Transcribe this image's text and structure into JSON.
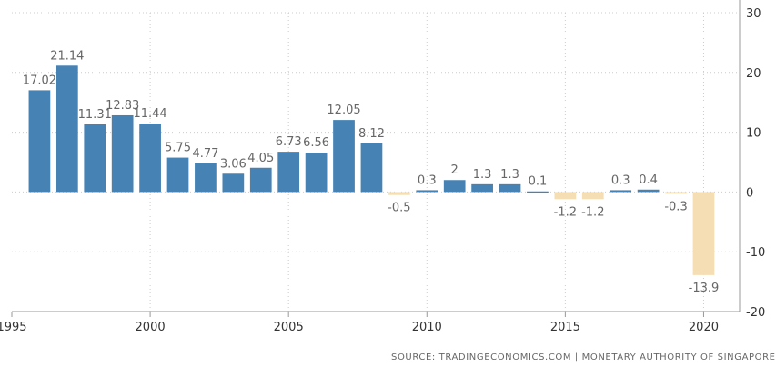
{
  "chart_data": {
    "type": "bar",
    "x": [
      1996,
      1997,
      1998,
      1999,
      2000,
      2001,
      2002,
      2003,
      2004,
      2005,
      2006,
      2007,
      2008,
      2009,
      2010,
      2011,
      2012,
      2013,
      2014,
      2015,
      2016,
      2017,
      2018,
      2019,
      2020
    ],
    "values": [
      17.02,
      21.14,
      11.31,
      12.83,
      11.44,
      5.75,
      4.77,
      3.06,
      4.05,
      6.73,
      6.56,
      12.05,
      8.12,
      -0.5,
      0.3,
      2,
      1.3,
      1.3,
      0.1,
      -1.2,
      -1.2,
      0.3,
      0.4,
      -0.3,
      -13.9
    ],
    "labels": [
      "17.02",
      "21.14",
      "11.31",
      "12.83",
      "11.44",
      "5.75",
      "4.77",
      "3.06",
      "4.05",
      "6.73",
      "6.56",
      "12.05",
      "8.12",
      "-0.5",
      "0.3",
      "2",
      "1.3",
      "1.3",
      "0.1",
      "-1.2",
      "-1.2",
      "0.3",
      "0.4",
      "-0.3",
      "-13.9"
    ],
    "x_ticks": [
      1995,
      2000,
      2005,
      2010,
      2015,
      2020
    ],
    "y_ticks": [
      30,
      20,
      10,
      0,
      -10,
      -20
    ],
    "ylim": [
      -20,
      30
    ],
    "xlim": [
      1995,
      2021.3
    ],
    "grid": true,
    "colors": {
      "positive": "#4682b4",
      "negative": "#f5deb3"
    }
  },
  "source": "SOURCE: TRADINGECONOMICS.COM | MONETARY AUTHORITY OF SINGAPORE"
}
